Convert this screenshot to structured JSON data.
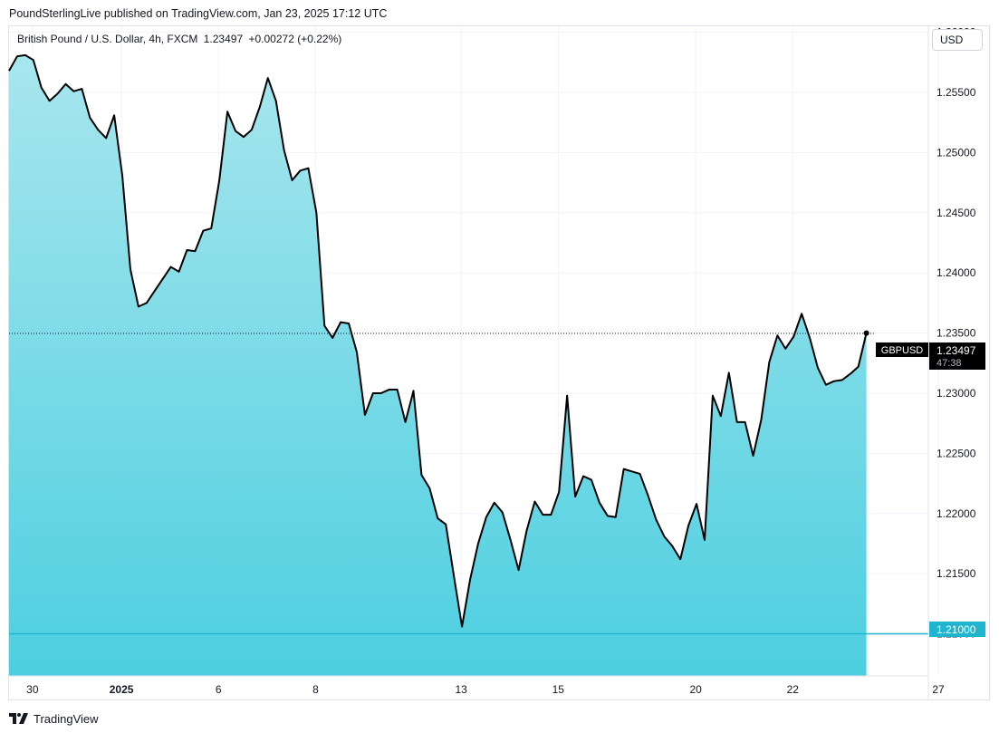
{
  "header": {
    "publisher_line": "PoundSterlingLive published on TradingView.com, Jan 23, 2025 17:12 UTC"
  },
  "legend": {
    "symbol_desc": "British Pound / U.S. Dollar, 4h, FXCM",
    "last": "1.23497",
    "change": "+0.00272 (+0.22%)"
  },
  "currency_button": "USD",
  "price_tag": {
    "symbol": "GBPUSD",
    "value": "1.23497",
    "countdown": "47:38"
  },
  "level_tag": {
    "value": "1.21000"
  },
  "footer": {
    "brand": "TradingView"
  },
  "colors": {
    "line": "#000000",
    "fill_top": "#a8e6ee",
    "fill_bottom": "#4dcfe0",
    "level_line": "#1fb5cf",
    "tag_bg": "#000000",
    "grid": "#f0f3fa"
  },
  "chart_data": {
    "type": "area",
    "title": "",
    "xlabel": "",
    "ylabel": "",
    "ylim": [
      1.2065,
      1.2605
    ],
    "y_ticks": [
      "1.26000",
      "1.25500",
      "1.25000",
      "1.24500",
      "1.24000",
      "1.23500",
      "1.23000",
      "1.22500",
      "1.22000",
      "1.21500",
      "1.21000"
    ],
    "x_ticks": [
      {
        "label": "30",
        "i": 2,
        "bold": false
      },
      {
        "label": "2025",
        "i": 13,
        "bold": true
      },
      {
        "label": "6",
        "i": 25,
        "bold": false
      },
      {
        "label": "8",
        "i": 37,
        "bold": false
      },
      {
        "label": "13",
        "i": 55,
        "bold": false
      },
      {
        "label": "15",
        "i": 67,
        "bold": false
      },
      {
        "label": "20",
        "i": 84,
        "bold": false
      },
      {
        "label": "22",
        "i": 96,
        "bold": false
      },
      {
        "label": "27",
        "i": 114,
        "bold": false
      }
    ],
    "horizontal_level": 1.21,
    "last_value": 1.23497,
    "series": [
      {
        "values": [
          1.2568,
          1.258,
          1.2581,
          1.2577,
          1.2554,
          1.2543,
          1.2549,
          1.2557,
          1.2551,
          1.2553,
          1.2529,
          1.2519,
          1.2512,
          1.2531,
          1.2481,
          1.2403,
          1.2372,
          1.2375,
          1.2385,
          1.2395,
          1.2405,
          1.2401,
          1.2419,
          1.2418,
          1.2435,
          1.2437,
          1.2477,
          1.2534,
          1.2518,
          1.2513,
          1.2519,
          1.2538,
          1.2562,
          1.2543,
          1.2502,
          1.2477,
          1.2485,
          1.2487,
          1.245,
          1.2356,
          1.2346,
          1.2359,
          1.2358,
          1.2334,
          1.2282,
          1.23,
          1.23,
          1.2303,
          1.2303,
          1.2276,
          1.2302,
          1.2232,
          1.2221,
          1.2196,
          1.2191,
          1.2148,
          1.2106,
          1.2145,
          1.2175,
          1.2197,
          1.2209,
          1.2201,
          1.2178,
          1.2153,
          1.2186,
          1.221,
          1.2199,
          1.2199,
          1.2218,
          1.2298,
          1.2214,
          1.2231,
          1.2228,
          1.2209,
          1.2198,
          1.2197,
          1.2237,
          1.2235,
          1.2233,
          1.2215,
          1.2195,
          1.2181,
          1.2173,
          1.2162,
          1.219,
          1.2208,
          1.2178,
          1.2298,
          1.2281,
          1.2317,
          1.2276,
          1.2276,
          1.2248,
          1.2278,
          1.2326,
          1.2348,
          1.2337,
          1.2347,
          1.2366,
          1.2346,
          1.2321,
          1.2307,
          1.231,
          1.2311,
          1.2316,
          1.2322,
          1.235
        ]
      }
    ]
  }
}
